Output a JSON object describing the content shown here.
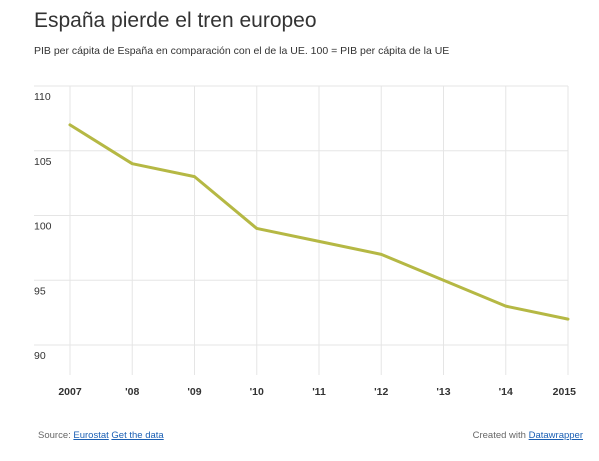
{
  "header": {
    "title": "España pierde el tren europeo",
    "subtitle": "PIB per cápita de España en comparación con el de la UE. 100 = PIB per cápita de la UE"
  },
  "footer": {
    "source_prefix": "Source:",
    "source_link": "Eurostat",
    "get_data_link": "Get the data",
    "created_with": "Created with",
    "datawrapper_link": "Datawrapper"
  },
  "colors": {
    "line": "#b5b844",
    "grid": "#e5e5e5",
    "link": "#1a5fb4"
  },
  "chart_data": {
    "type": "line",
    "x": [
      2007,
      2008,
      2009,
      2010,
      2011,
      2012,
      2013,
      2014,
      2015
    ],
    "x_tick_labels": [
      "2007",
      "'08",
      "'09",
      "'10",
      "'11",
      "'12",
      "'13",
      "'14",
      "2015"
    ],
    "series": [
      {
        "values": [
          107,
          104,
          103,
          99,
          98,
          97,
          95,
          93,
          92
        ]
      }
    ],
    "y_ticks": [
      110,
      105,
      100,
      95,
      90
    ],
    "ylim": [
      90,
      110
    ],
    "xlim": [
      2007,
      2015
    ],
    "grid": true,
    "title": "España pierde el tren europeo",
    "xlabel": "",
    "ylabel": ""
  }
}
